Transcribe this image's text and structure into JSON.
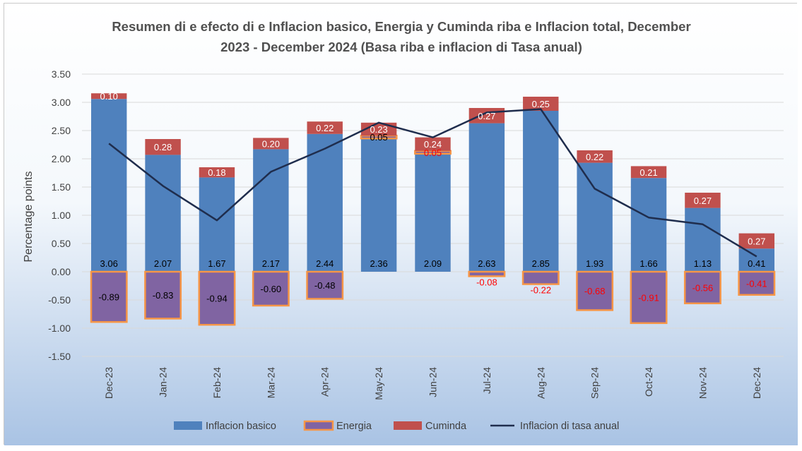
{
  "chart_data": {
    "type": "bar",
    "title_lines": [
      "Resumen di e efecto di e Inflacion basico, Energia y Cuminda riba e Inflacion total, December",
      "2023 - December 2024 (Basa riba e inflacion di Tasa anual)"
    ],
    "ylabel": "Percentage points",
    "xlabel": "",
    "ylim": [
      -1.5,
      3.5
    ],
    "yticks": [
      "3.50",
      "3.00",
      "2.50",
      "2.00",
      "1.50",
      "1.00",
      "0.50",
      "0.00",
      "-0.50",
      "-1.00",
      "-1.50"
    ],
    "categories": [
      "Dec-23",
      "Jan-24",
      "Feb-24",
      "Mar-24",
      "Apr-24",
      "May-24",
      "Jun-24",
      "Jul-24",
      "Aug-24",
      "Sep-24",
      "Oct-24",
      "Nov-24",
      "Dec-24"
    ],
    "series": [
      {
        "name": "Inflacion basico",
        "kind": "stacked-bar",
        "color": "#4f81bd",
        "values": [
          3.06,
          2.07,
          1.67,
          2.17,
          2.44,
          2.36,
          2.09,
          2.63,
          2.85,
          1.93,
          1.66,
          1.13,
          0.41
        ],
        "labels": [
          "3.06",
          "2.07",
          "1.67",
          "2.17",
          "2.44",
          "2.36",
          "2.09",
          "2.63",
          "2.85",
          "1.93",
          "1.66",
          "1.13",
          "0.41"
        ]
      },
      {
        "name": "Energia",
        "kind": "stacked-bar",
        "color": "#8064a2",
        "border_color": "#f79646",
        "values": [
          -0.89,
          -0.83,
          -0.94,
          -0.6,
          -0.48,
          0.05,
          0.05,
          -0.08,
          -0.22,
          -0.68,
          -0.91,
          -0.56,
          -0.41
        ],
        "labels": [
          "-0.89",
          "-0.83",
          "-0.94",
          "-0.60",
          "-0.48",
          "0.05",
          "0.05",
          "-0.08",
          "-0.22",
          "-0.68",
          "-0.91",
          "-0.56",
          "-0.41"
        ]
      },
      {
        "name": "Cuminda",
        "kind": "stacked-bar",
        "color": "#c0504d",
        "values": [
          0.1,
          0.28,
          0.18,
          0.2,
          0.22,
          0.23,
          0.24,
          0.27,
          0.25,
          0.22,
          0.21,
          0.27,
          0.27
        ],
        "labels": [
          "0.10",
          "0.28",
          "0.18",
          "0.20",
          "0.22",
          "0.23",
          "0.24",
          "0.27",
          "0.25",
          "0.22",
          "0.21",
          "0.27",
          "0.27"
        ]
      },
      {
        "name": "Inflacion di tasa anual",
        "kind": "line",
        "color": "#1f2d4d",
        "values": [
          2.27,
          1.52,
          0.91,
          1.77,
          2.18,
          2.64,
          2.38,
          2.82,
          2.88,
          1.47,
          0.96,
          0.84,
          0.27
        ]
      }
    ],
    "grid": true,
    "legend_position": "bottom",
    "background_gradient": [
      "#ffffff",
      "#a9c3e4"
    ]
  }
}
